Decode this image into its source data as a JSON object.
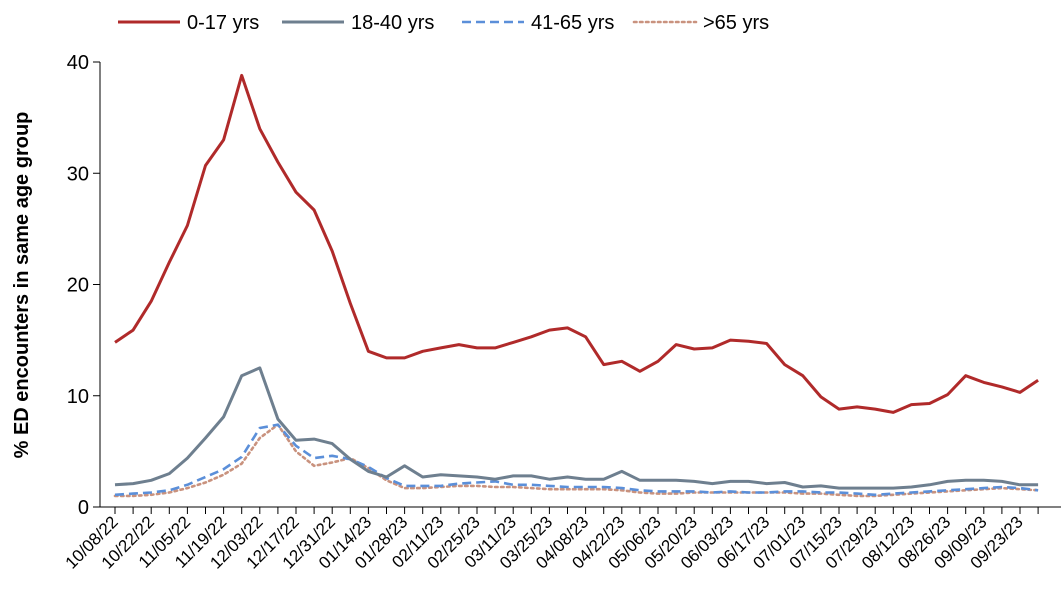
{
  "chart_data": {
    "type": "line",
    "title": "",
    "xlabel": "",
    "ylabel": "% ED encounters in same age group",
    "ylim": [
      0,
      40
    ],
    "y_ticks": [
      0,
      10,
      20,
      30,
      40
    ],
    "grid": false,
    "legend_position": "top",
    "x": [
      "10/08/22",
      "10/15/22",
      "10/22/22",
      "10/29/22",
      "11/05/22",
      "11/12/22",
      "11/19/22",
      "11/26/22",
      "12/03/22",
      "12/10/22",
      "12/17/22",
      "12/24/22",
      "12/31/22",
      "01/07/23",
      "01/14/23",
      "01/21/23",
      "01/28/23",
      "02/04/23",
      "02/11/23",
      "02/18/23",
      "02/25/23",
      "03/04/23",
      "03/11/23",
      "03/18/23",
      "03/25/23",
      "04/01/23",
      "04/08/23",
      "04/15/23",
      "04/22/23",
      "04/29/23",
      "05/06/23",
      "05/13/23",
      "05/20/23",
      "05/27/23",
      "06/03/23",
      "06/10/23",
      "06/17/23",
      "06/24/23",
      "07/01/23",
      "07/08/23",
      "07/15/23",
      "07/22/23",
      "07/29/23",
      "08/05/23",
      "08/12/23",
      "08/19/23",
      "08/26/23",
      "09/02/23",
      "09/09/23",
      "09/16/23",
      "09/23/23",
      "09/30/23"
    ],
    "x_tick_labels": [
      "10/08/22",
      "10/22/22",
      "11/05/22",
      "11/19/22",
      "12/03/22",
      "12/17/22",
      "12/31/22",
      "01/14/23",
      "01/28/23",
      "02/11/23",
      "02/25/23",
      "03/11/23",
      "03/25/23",
      "04/08/23",
      "04/22/23",
      "05/06/23",
      "05/20/23",
      "06/03/23",
      "06/17/23",
      "07/01/23",
      "07/15/23",
      "07/29/23",
      "08/12/23",
      "08/26/23",
      "09/09/23",
      "09/23/23"
    ],
    "series": [
      {
        "name": "0-17 yrs",
        "color": "#b02a2a",
        "style": "solid",
        "values": [
          14.8,
          15.9,
          18.5,
          22.0,
          25.3,
          30.7,
          33.0,
          38.8,
          34.0,
          31.0,
          28.3,
          26.7,
          23.0,
          18.3,
          14.0,
          13.4,
          13.4,
          14.0,
          14.3,
          14.6,
          14.3,
          14.3,
          14.8,
          15.3,
          15.9,
          16.1,
          15.3,
          12.8,
          13.1,
          12.2,
          13.1,
          14.6,
          14.2,
          14.3,
          15.0,
          14.9,
          14.7,
          12.8,
          11.8,
          9.9,
          8.8,
          9.0,
          8.8,
          8.5,
          9.2,
          9.3,
          10.1,
          11.8,
          11.2,
          10.8,
          10.3,
          11.4
        ]
      },
      {
        "name": "18-40 yrs",
        "color": "#6e7f8f",
        "style": "solid",
        "values": [
          2.0,
          2.1,
          2.4,
          3.0,
          4.4,
          6.2,
          8.1,
          11.8,
          12.5,
          7.9,
          6.0,
          6.1,
          5.7,
          4.3,
          3.2,
          2.7,
          3.7,
          2.7,
          2.9,
          2.8,
          2.7,
          2.5,
          2.8,
          2.8,
          2.5,
          2.7,
          2.5,
          2.5,
          3.2,
          2.4,
          2.4,
          2.4,
          2.3,
          2.1,
          2.3,
          2.3,
          2.1,
          2.2,
          1.8,
          1.9,
          1.7,
          1.7,
          1.7,
          1.7,
          1.8,
          2.0,
          2.3,
          2.4,
          2.4,
          2.3,
          2.0,
          2.0
        ]
      },
      {
        "name": "41-65 yrs",
        "color": "#5b8fd9",
        "style": "dashed",
        "values": [
          1.1,
          1.2,
          1.3,
          1.5,
          2.0,
          2.7,
          3.4,
          4.5,
          7.1,
          7.4,
          5.5,
          4.4,
          4.6,
          4.3,
          3.6,
          2.6,
          1.9,
          1.9,
          1.9,
          2.1,
          2.2,
          2.3,
          2.0,
          2.0,
          1.9,
          1.8,
          1.8,
          1.8,
          1.7,
          1.5,
          1.4,
          1.4,
          1.4,
          1.3,
          1.4,
          1.3,
          1.3,
          1.4,
          1.4,
          1.3,
          1.3,
          1.2,
          1.1,
          1.2,
          1.3,
          1.4,
          1.5,
          1.6,
          1.7,
          1.8,
          1.7,
          1.5
        ]
      },
      {
        "name": ">65 yrs",
        "color": "#c9927e",
        "style": "dotted",
        "values": [
          1.0,
          1.0,
          1.1,
          1.3,
          1.7,
          2.2,
          2.9,
          3.9,
          6.2,
          7.4,
          5.0,
          3.7,
          4.0,
          4.4,
          3.5,
          2.4,
          1.7,
          1.7,
          1.8,
          1.9,
          1.9,
          1.8,
          1.8,
          1.7,
          1.6,
          1.6,
          1.6,
          1.6,
          1.5,
          1.3,
          1.2,
          1.2,
          1.3,
          1.3,
          1.3,
          1.3,
          1.3,
          1.3,
          1.2,
          1.2,
          1.1,
          1.0,
          1.0,
          1.1,
          1.2,
          1.3,
          1.4,
          1.5,
          1.6,
          1.7,
          1.6,
          1.5
        ]
      }
    ]
  }
}
